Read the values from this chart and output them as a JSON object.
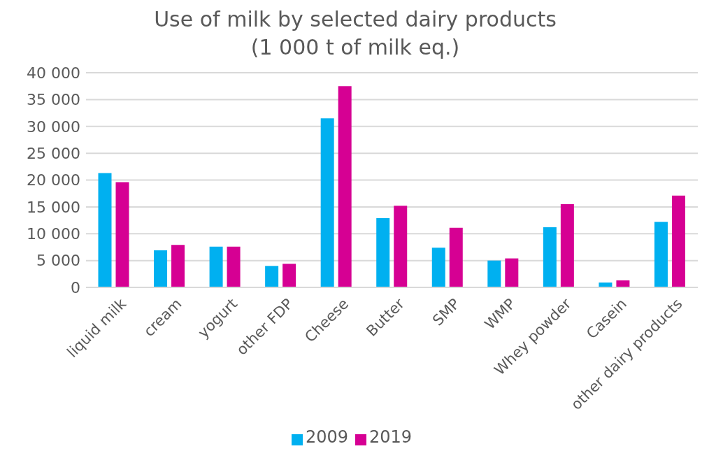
{
  "chart_data": {
    "type": "bar",
    "title": "Use of milk by selected dairy products",
    "subtitle": "(1 000 t of milk eq.)",
    "categories": [
      "liquid milk",
      "cream",
      "yogurt",
      "other FDP",
      "Cheese",
      "Butter",
      "SMP",
      "WMP",
      "Whey powder",
      "Casein",
      "other dairy products"
    ],
    "series": [
      {
        "name": "2009",
        "color": "#00b0f0",
        "values": [
          21300,
          6900,
          7600,
          4000,
          31500,
          12900,
          7400,
          5000,
          11200,
          900,
          12200
        ]
      },
      {
        "name": "2019",
        "color": "#d60093",
        "values": [
          19600,
          7900,
          7600,
          4400,
          37500,
          15200,
          11100,
          5400,
          15500,
          1300,
          17100
        ]
      }
    ],
    "ylim": [
      0,
      40000
    ],
    "yticks": [
      {
        "value": 0,
        "label": "0"
      },
      {
        "value": 5000,
        "label": "5 000"
      },
      {
        "value": 10000,
        "label": "10 000"
      },
      {
        "value": 15000,
        "label": "15 000"
      },
      {
        "value": 20000,
        "label": "20 000"
      },
      {
        "value": 25000,
        "label": "25 000"
      },
      {
        "value": 30000,
        "label": "30 000"
      },
      {
        "value": 35000,
        "label": "35 000"
      },
      {
        "value": 40000,
        "label": "40 000"
      }
    ],
    "grid": "y",
    "legend": "bottom"
  }
}
